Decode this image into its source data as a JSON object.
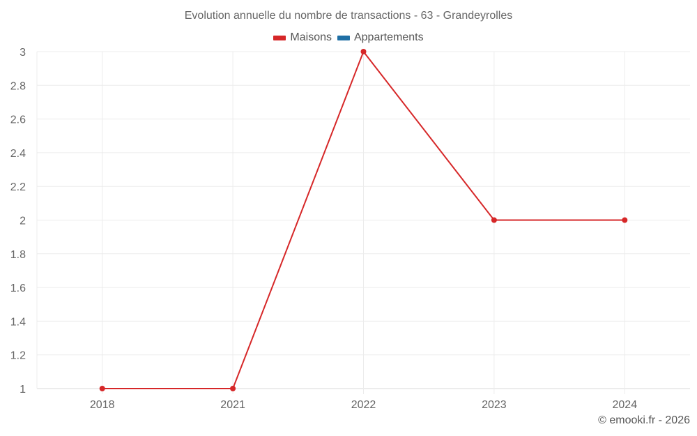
{
  "chart_data": {
    "type": "line",
    "title": "Evolution annuelle du nombre de transactions - 63 - Grandeyrolles",
    "categories": [
      "2018",
      "2021",
      "2022",
      "2023",
      "2024"
    ],
    "series": [
      {
        "name": "Maisons",
        "color": "#d62728",
        "values": [
          1,
          1,
          3,
          2,
          2
        ]
      },
      {
        "name": "Appartements",
        "color": "#1f6fa5",
        "values": [
          null,
          null,
          null,
          null,
          null
        ]
      }
    ],
    "xlabel": "",
    "ylabel": "",
    "ylim": [
      1,
      3
    ],
    "yticks": [
      "1",
      "1.2",
      "1.4",
      "1.6",
      "1.8",
      "2",
      "2.2",
      "2.4",
      "2.6",
      "2.8",
      "3"
    ],
    "grid": true,
    "legend_position": "top"
  },
  "credit": "© emooki.fr - 2026"
}
